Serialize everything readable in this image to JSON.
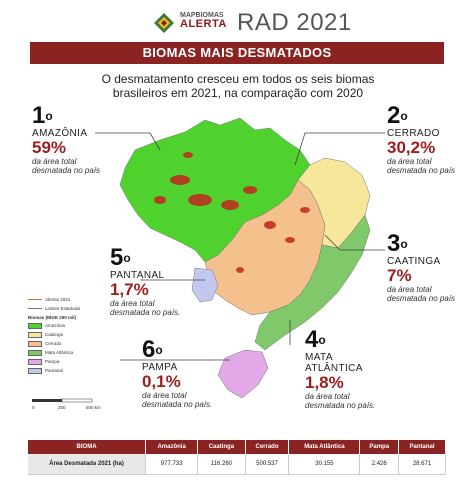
{
  "header": {
    "logo_line1": "MAPBIOMAS",
    "logo_line2": "ALERTA",
    "title": "RAD 2021"
  },
  "banner": "BIOMAS MAIS DESMATADOS",
  "subtitle": "O desmatamento cresceu em todos os seis biomas brasileiros em 2021, na comparação com 2020",
  "stats": {
    "amazonia": {
      "rank": "1",
      "name": "AMAZÔNIA",
      "pct": "59%",
      "note1": "da área total",
      "note2": "desmatada no país"
    },
    "cerrado": {
      "rank": "2",
      "name": "CERRADO",
      "pct": "30,2%",
      "note1": "da área total",
      "note2": "desmatada no país"
    },
    "caatinga": {
      "rank": "3",
      "name": "CAATINGA",
      "pct": "7%",
      "note1": "da área total",
      "note2": "desmatada no país"
    },
    "mata": {
      "rank": "4",
      "name1": "MATA",
      "name2": "ATLÂNTICA",
      "pct": "1,8%",
      "note1": "da área total",
      "note2": "desmatada no país."
    },
    "pantanal": {
      "rank": "5",
      "name": "PANTANAL",
      "pct": "1,7%",
      "note1": "da área total",
      "note2": "desmatada no país."
    },
    "pampa": {
      "rank": "6",
      "name": "PAMPA",
      "pct": "0,1%",
      "note1": "da área total",
      "note2": "desmatada no país."
    }
  },
  "legend": {
    "alertas": "Alertas 2021",
    "limites": "Limites Estaduais",
    "biomas_title": "Biomas (IBGE 250 mil)",
    "items": [
      "Amazônia",
      "Caatinga",
      "Cerrado",
      "Mata Atlântica",
      "Pampa",
      "Pantanal"
    ],
    "colors": [
      "#4fd12e",
      "#f6e79a",
      "#f4c08c",
      "#7fc96a",
      "#e3a8e8",
      "#c3c7ef"
    ]
  },
  "scale": {
    "ticks": [
      "0",
      "250",
      "500 km"
    ]
  },
  "table": {
    "headers": [
      "BIOMA",
      "Amazônia",
      "Caatinga",
      "Cerrado",
      "Mata Atlântica",
      "Pampa",
      "Pantanal"
    ],
    "row_label": "Área Desmatada 2021 (ha)",
    "values": [
      "977.733",
      "116.260",
      "500.537",
      "30.155",
      "2.426",
      "28.671"
    ]
  }
}
